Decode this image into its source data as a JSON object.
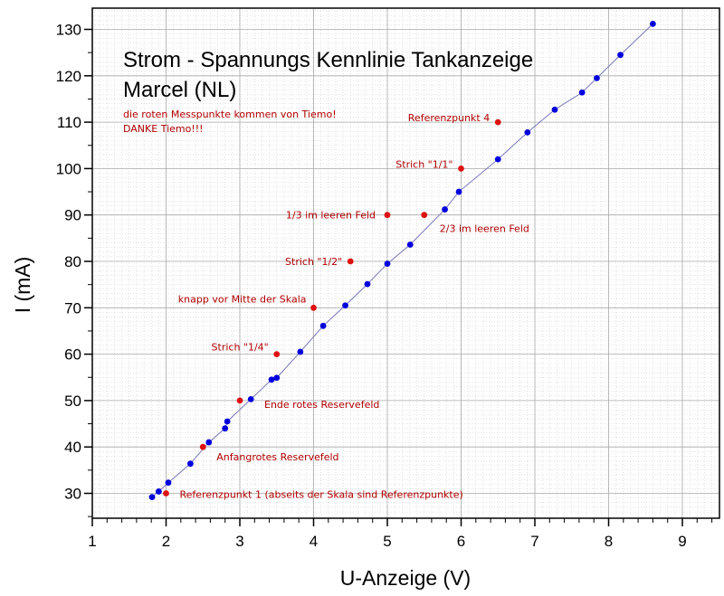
{
  "chart_data": {
    "type": "scatter",
    "title": "Strom - Spannungs Kennlinie Tankanzeige",
    "subtitle": "Marcel (NL)",
    "notes": [
      "die roten Messpunkte kommen von Tiemo!",
      "DANKE Tiemo!!!"
    ],
    "xlabel": "U-Anzeige (V)",
    "ylabel": "I (mA)",
    "xlim": [
      1,
      9.5
    ],
    "ylim": [
      25,
      136
    ],
    "x_ticks": [
      1,
      2,
      3,
      4,
      5,
      6,
      7,
      8,
      9
    ],
    "y_ticks": [
      30,
      40,
      50,
      60,
      70,
      80,
      90,
      100,
      110,
      120,
      130
    ],
    "grid": "minor and major",
    "colors": {
      "blue_series": "#0000dd",
      "line": "#7777bb",
      "red_series": "#dd1111",
      "annotation": "#b00000",
      "grid": "#c8c8c8"
    },
    "series": [
      {
        "values": [
          {
            "x": 1.81,
            "y": 29.2
          },
          {
            "x": 1.9,
            "y": 30.4
          },
          {
            "x": 2.03,
            "y": 32.3
          },
          {
            "x": 2.33,
            "y": 36.4
          },
          {
            "x": 2.58,
            "y": 41.0
          },
          {
            "x": 2.8,
            "y": 44.0
          },
          {
            "x": 2.83,
            "y": 45.5
          },
          {
            "x": 3.15,
            "y": 50.3
          },
          {
            "x": 3.43,
            "y": 54.5
          },
          {
            "x": 3.5,
            "y": 54.9
          },
          {
            "x": 3.82,
            "y": 60.5
          },
          {
            "x": 4.13,
            "y": 66.1
          },
          {
            "x": 4.43,
            "y": 70.5
          },
          {
            "x": 4.73,
            "y": 75.1
          },
          {
            "x": 5.0,
            "y": 79.5
          },
          {
            "x": 5.31,
            "y": 83.6
          },
          {
            "x": 5.78,
            "y": 91.2
          },
          {
            "x": 5.97,
            "y": 95.0
          },
          {
            "x": 6.5,
            "y": 102.0
          },
          {
            "x": 6.9,
            "y": 107.8
          },
          {
            "x": 7.27,
            "y": 112.7
          },
          {
            "x": 7.64,
            "y": 116.4
          },
          {
            "x": 7.84,
            "y": 119.5
          },
          {
            "x": 8.16,
            "y": 124.5
          },
          {
            "x": 8.6,
            "y": 131.2
          }
        ]
      },
      {
        "values": [
          {
            "x": 2.0,
            "y": 30,
            "label": "Referenzpunkt 1 (abseits der Skala sind Referenzpunkte)"
          },
          {
            "x": 2.5,
            "y": 40,
            "label": "Anfangrotes Reservefeld"
          },
          {
            "x": 3.0,
            "y": 50,
            "label": "Ende rotes Reservefeld"
          },
          {
            "x": 3.5,
            "y": 60,
            "label": "Strich \"1/4\""
          },
          {
            "x": 4.0,
            "y": 70,
            "label": "knapp vor Mitte der Skala"
          },
          {
            "x": 4.5,
            "y": 80,
            "label": "Strich \"1/2\""
          },
          {
            "x": 5.0,
            "y": 90,
            "label": "1/3 im leeren Feld"
          },
          {
            "x": 5.5,
            "y": 90,
            "label": "2/3 im leeren Feld"
          },
          {
            "x": 6.0,
            "y": 100,
            "label": "Strich \"1/1\""
          },
          {
            "x": 6.5,
            "y": 110,
            "label": "Referenzpunkt 4"
          }
        ]
      }
    ]
  }
}
